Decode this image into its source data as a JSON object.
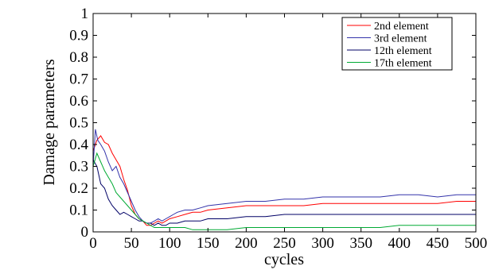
{
  "chart_data": {
    "type": "line",
    "xlabel": "cycles",
    "ylabel": "Damage parameters",
    "xlim": [
      0,
      500
    ],
    "ylim": [
      0,
      1
    ],
    "xticks": [
      "0",
      "50",
      "100",
      "150",
      "200",
      "250",
      "300",
      "350",
      "400",
      "450",
      "500"
    ],
    "yticks": [
      "0",
      "0.1",
      "0.2",
      "0.3",
      "0.4",
      "0.5",
      "0.6",
      "0.7",
      "0.8",
      "0.9",
      "1"
    ],
    "grid": false,
    "legend_position": "top-right",
    "series": [
      {
        "name": "2nd element",
        "color": "#ff0000",
        "x": [
          0,
          5,
          10,
          15,
          20,
          25,
          30,
          35,
          40,
          45,
          50,
          55,
          60,
          65,
          70,
          75,
          80,
          85,
          90,
          95,
          100,
          110,
          120,
          130,
          140,
          150,
          175,
          200,
          225,
          250,
          275,
          300,
          325,
          350,
          375,
          400,
          425,
          450,
          475,
          500
        ],
        "y": [
          0.37,
          0.42,
          0.44,
          0.41,
          0.4,
          0.36,
          0.33,
          0.3,
          0.24,
          0.19,
          0.12,
          0.08,
          0.06,
          0.05,
          0.03,
          0.03,
          0.04,
          0.05,
          0.04,
          0.05,
          0.06,
          0.07,
          0.08,
          0.09,
          0.09,
          0.1,
          0.11,
          0.12,
          0.12,
          0.12,
          0.12,
          0.13,
          0.13,
          0.13,
          0.13,
          0.13,
          0.13,
          0.13,
          0.14,
          0.14
        ]
      },
      {
        "name": "3rd element",
        "color": "#3333aa",
        "x": [
          0,
          3,
          6,
          10,
          15,
          20,
          25,
          30,
          35,
          40,
          45,
          50,
          55,
          60,
          65,
          70,
          75,
          80,
          85,
          90,
          95,
          100,
          105,
          110,
          120,
          130,
          140,
          150,
          175,
          200,
          225,
          250,
          275,
          300,
          325,
          350,
          375,
          400,
          425,
          450,
          475,
          500
        ],
        "y": [
          0.3,
          0.47,
          0.42,
          0.4,
          0.37,
          0.32,
          0.28,
          0.3,
          0.25,
          0.22,
          0.18,
          0.14,
          0.1,
          0.07,
          0.05,
          0.04,
          0.04,
          0.05,
          0.06,
          0.05,
          0.06,
          0.07,
          0.08,
          0.09,
          0.1,
          0.1,
          0.11,
          0.12,
          0.13,
          0.14,
          0.14,
          0.15,
          0.15,
          0.16,
          0.16,
          0.16,
          0.16,
          0.17,
          0.17,
          0.16,
          0.17,
          0.17
        ]
      },
      {
        "name": "12th element",
        "color": "#000066",
        "x": [
          0,
          5,
          10,
          15,
          20,
          25,
          30,
          35,
          40,
          45,
          50,
          55,
          60,
          65,
          70,
          75,
          80,
          85,
          90,
          95,
          100,
          110,
          120,
          130,
          140,
          150,
          175,
          200,
          225,
          250,
          275,
          300,
          325,
          350,
          375,
          400,
          425,
          450,
          475,
          500
        ],
        "y": [
          0.33,
          0.3,
          0.22,
          0.2,
          0.15,
          0.12,
          0.1,
          0.08,
          0.09,
          0.08,
          0.07,
          0.06,
          0.05,
          0.05,
          0.04,
          0.04,
          0.03,
          0.04,
          0.03,
          0.03,
          0.04,
          0.04,
          0.05,
          0.05,
          0.05,
          0.06,
          0.06,
          0.07,
          0.07,
          0.08,
          0.08,
          0.08,
          0.08,
          0.08,
          0.08,
          0.08,
          0.08,
          0.08,
          0.08,
          0.08
        ]
      },
      {
        "name": "17th element",
        "color": "#00aa33",
        "x": [
          0,
          5,
          10,
          15,
          20,
          25,
          30,
          35,
          40,
          45,
          50,
          55,
          60,
          65,
          70,
          75,
          80,
          85,
          90,
          95,
          100,
          110,
          120,
          130,
          140,
          150,
          175,
          200,
          225,
          250,
          275,
          300,
          325,
          350,
          375,
          400,
          425,
          450,
          475,
          500
        ],
        "y": [
          0.3,
          0.36,
          0.32,
          0.28,
          0.25,
          0.22,
          0.18,
          0.16,
          0.14,
          0.12,
          0.1,
          0.08,
          0.06,
          0.05,
          0.04,
          0.03,
          0.02,
          0.02,
          0.02,
          0.02,
          0.02,
          0.02,
          0.02,
          0.01,
          0.01,
          0.01,
          0.01,
          0.02,
          0.02,
          0.02,
          0.02,
          0.02,
          0.02,
          0.02,
          0.02,
          0.03,
          0.03,
          0.03,
          0.03,
          0.03
        ]
      }
    ]
  }
}
